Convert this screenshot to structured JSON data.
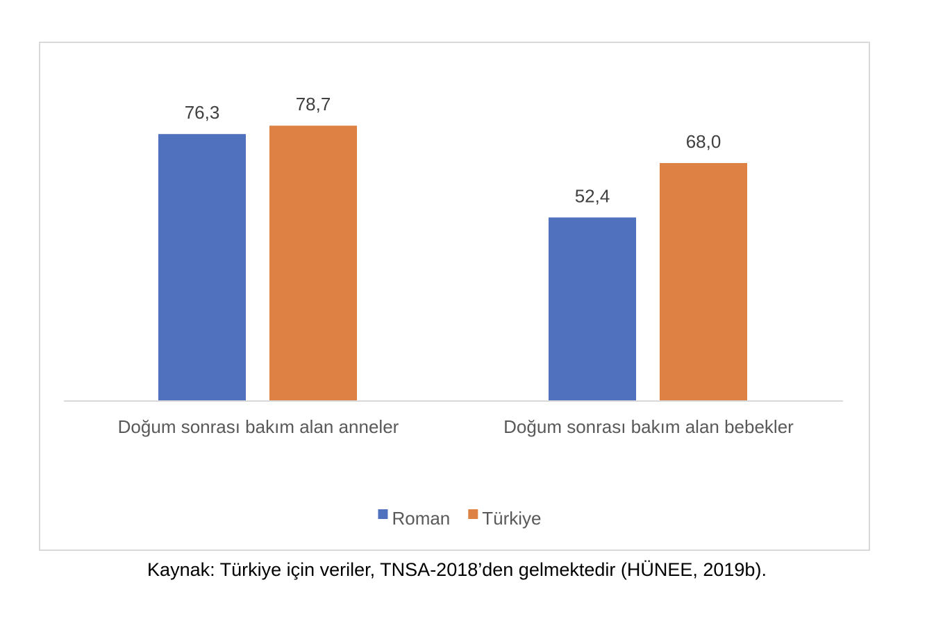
{
  "chart_data": {
    "type": "bar",
    "categories": [
      "Doğum sonrası bakım alan anneler",
      "Doğum sonrası bakım alan bebekler"
    ],
    "series": [
      {
        "name": "Roman",
        "values": [
          76.3,
          52.4
        ],
        "labels": [
          "76,3",
          "52,4"
        ],
        "color": "#4f71be"
      },
      {
        "name": "Türkiye",
        "values": [
          78.7,
          68.0
        ],
        "labels": [
          "78,7",
          "68,0"
        ],
        "color": "#dd8144"
      }
    ],
    "title": "",
    "xlabel": "",
    "ylabel": "",
    "ylim": [
      0,
      100
    ],
    "grid": false,
    "axis_visible": false,
    "legend_position": "bottom"
  },
  "source_note": "Kaynak: Türkiye için veriler, TNSA-2018’den gelmektedir (HÜNEE, 2019b)."
}
